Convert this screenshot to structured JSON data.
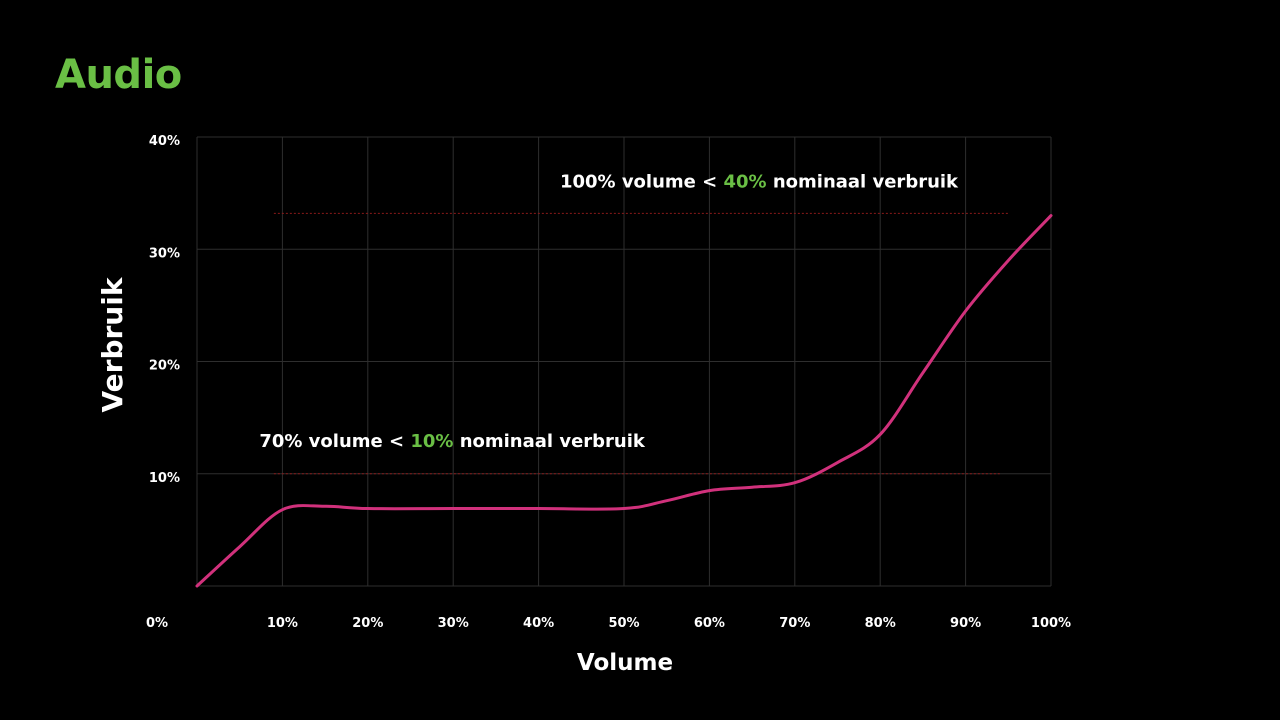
{
  "page": {
    "title": "Audio"
  },
  "colors": {
    "background": "#000000",
    "title": "#6abf45",
    "accent_green": "#6abf45",
    "series_line": "#d1317c",
    "grid": "#2e2e2e",
    "reference_line": "#8b1a1a",
    "text": "#ffffff"
  },
  "chart_data": {
    "type": "line",
    "title": "Audio",
    "xlabel": "Volume",
    "ylabel": "Verbruik",
    "xlim": [
      0,
      100
    ],
    "ylim": [
      0,
      40
    ],
    "grid": true,
    "legend": "none",
    "x_ticks": [
      "0%",
      "10%",
      "20%",
      "30%",
      "40%",
      "50%",
      "60%",
      "70%",
      "80%",
      "90%",
      "100%"
    ],
    "y_ticks": [
      "10%",
      "20%",
      "30%",
      "40%"
    ],
    "x_tick_values": [
      0,
      10,
      20,
      30,
      40,
      50,
      60,
      70,
      80,
      90,
      100
    ],
    "y_tick_values": [
      10,
      20,
      30,
      40
    ],
    "series": [
      {
        "x": [
          0,
          5,
          10,
          15,
          20,
          30,
          40,
          50,
          55,
          60,
          65,
          70,
          75,
          80,
          85,
          90,
          95,
          100
        ],
        "values": [
          0,
          3.5,
          6.8,
          7.1,
          6.9,
          6.9,
          6.9,
          6.9,
          7.6,
          8.5,
          8.8,
          9.2,
          11,
          13.5,
          19,
          24.5,
          29,
          33
        ]
      }
    ],
    "reference_lines": [
      {
        "y": 33.2,
        "x_start": 9,
        "x_end": 95
      },
      {
        "y": 10,
        "x_start": 9,
        "x_end": 94
      }
    ],
    "annotations": [
      {
        "before": "100% volume < ",
        "highlight": "40%",
        "after": " nominaal verbruik",
        "x": 42.5,
        "y": 35.5
      },
      {
        "before": "70% volume < ",
        "highlight": "10%",
        "after": " nominaal verbruik",
        "x": 7.3,
        "y": 12.4
      }
    ]
  }
}
